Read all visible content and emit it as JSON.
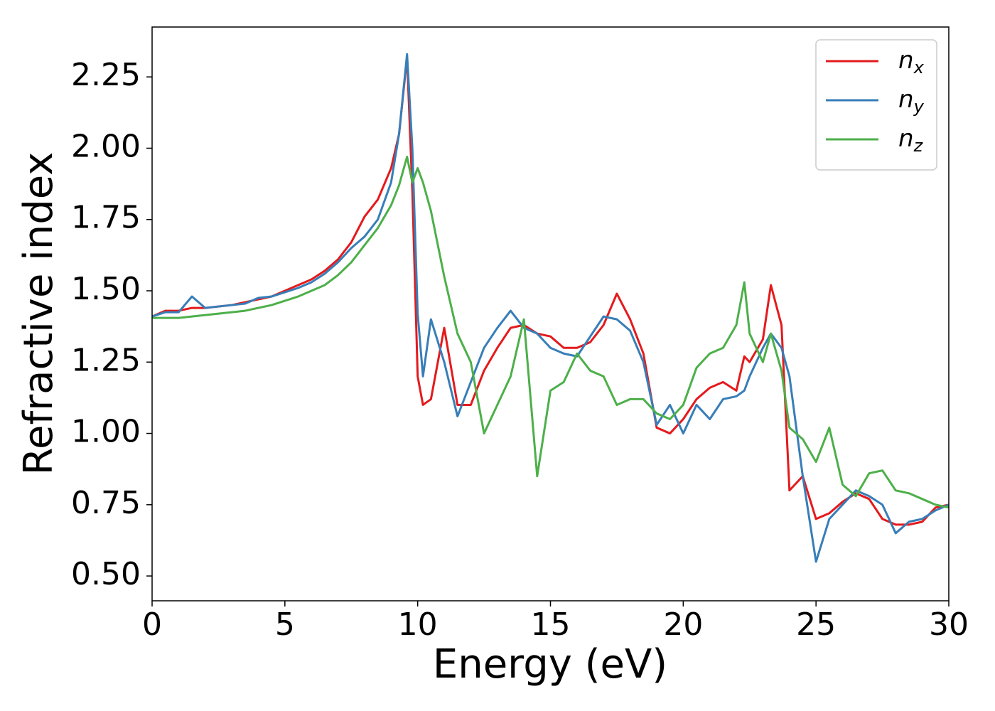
{
  "chart_data": {
    "type": "line",
    "x_label": "Energy (eV)",
    "y_label": "Refractive index",
    "x": [
      0,
      0.5,
      1,
      1.5,
      2,
      2.5,
      3,
      3.5,
      4,
      4.5,
      5,
      5.5,
      6,
      6.5,
      7,
      7.5,
      8,
      8.5,
      9,
      9.3,
      9.6,
      9.8,
      10,
      10.2,
      10.5,
      11,
      11.5,
      12,
      12.5,
      13,
      13.5,
      14,
      14.5,
      15,
      15.5,
      16,
      16.5,
      17,
      17.5,
      18,
      18.5,
      19,
      19.5,
      20,
      20.5,
      21,
      21.5,
      22,
      22.3,
      22.5,
      23,
      23.3,
      23.7,
      24,
      24.5,
      25,
      25.5,
      26,
      26.5,
      27,
      27.5,
      28,
      28.5,
      29,
      29.5,
      30
    ],
    "series": [
      {
        "name": "n_x",
        "color": "#e41a1c",
        "values": [
          1.41,
          1.43,
          1.43,
          1.44,
          1.44,
          1.445,
          1.45,
          1.46,
          1.47,
          1.48,
          1.5,
          1.52,
          1.54,
          1.57,
          1.61,
          1.67,
          1.76,
          1.82,
          1.93,
          2.05,
          2.32,
          1.85,
          1.2,
          1.1,
          1.12,
          1.37,
          1.1,
          1.1,
          1.22,
          1.3,
          1.37,
          1.38,
          1.35,
          1.34,
          1.3,
          1.3,
          1.32,
          1.38,
          1.49,
          1.4,
          1.28,
          1.02,
          1.0,
          1.05,
          1.12,
          1.16,
          1.18,
          1.15,
          1.27,
          1.25,
          1.33,
          1.52,
          1.38,
          0.8,
          0.85,
          0.7,
          0.72,
          0.76,
          0.79,
          0.77,
          0.7,
          0.68,
          0.68,
          0.69,
          0.74,
          0.75
        ]
      },
      {
        "name": "n_y",
        "color": "#377eb8",
        "values": [
          1.41,
          1.425,
          1.425,
          1.48,
          1.44,
          1.445,
          1.45,
          1.455,
          1.475,
          1.48,
          1.495,
          1.51,
          1.53,
          1.56,
          1.6,
          1.65,
          1.69,
          1.75,
          1.88,
          2.05,
          2.33,
          2.0,
          1.42,
          1.2,
          1.4,
          1.25,
          1.06,
          1.18,
          1.3,
          1.37,
          1.43,
          1.37,
          1.35,
          1.3,
          1.28,
          1.27,
          1.34,
          1.41,
          1.4,
          1.36,
          1.25,
          1.03,
          1.1,
          1.0,
          1.1,
          1.05,
          1.12,
          1.13,
          1.15,
          1.2,
          1.3,
          1.35,
          1.3,
          1.2,
          0.85,
          0.55,
          0.7,
          0.75,
          0.8,
          0.78,
          0.75,
          0.65,
          0.69,
          0.7,
          0.73,
          0.75
        ]
      },
      {
        "name": "n_z",
        "color": "#4daf4a",
        "values": [
          1.405,
          1.405,
          1.405,
          1.41,
          1.415,
          1.42,
          1.425,
          1.43,
          1.44,
          1.45,
          1.465,
          1.48,
          1.5,
          1.52,
          1.555,
          1.6,
          1.66,
          1.72,
          1.8,
          1.87,
          1.97,
          1.88,
          1.93,
          1.88,
          1.78,
          1.55,
          1.35,
          1.25,
          1.0,
          1.1,
          1.2,
          1.4,
          0.85,
          1.15,
          1.18,
          1.28,
          1.22,
          1.2,
          1.1,
          1.12,
          1.12,
          1.07,
          1.05,
          1.1,
          1.23,
          1.28,
          1.3,
          1.38,
          1.53,
          1.35,
          1.25,
          1.35,
          1.22,
          1.02,
          0.98,
          0.9,
          1.02,
          0.82,
          0.78,
          0.86,
          0.87,
          0.8,
          0.79,
          0.77,
          0.75,
          0.74
        ]
      }
    ],
    "xlim": [
      0,
      30
    ],
    "xticks": [
      0,
      5,
      10,
      15,
      20,
      25,
      30
    ],
    "ylim": [
      0.413,
      2.425
    ],
    "yticks": [
      {
        "value": 0.5,
        "label": "0.50"
      },
      0.75,
      {
        "value": 1.0,
        "label": "1.00"
      },
      1.25,
      {
        "value": 1.5,
        "label": "1.50"
      },
      1.75,
      {
        "value": 2.0,
        "label": "2.00"
      },
      2.25
    ],
    "legend": "upper right"
  }
}
